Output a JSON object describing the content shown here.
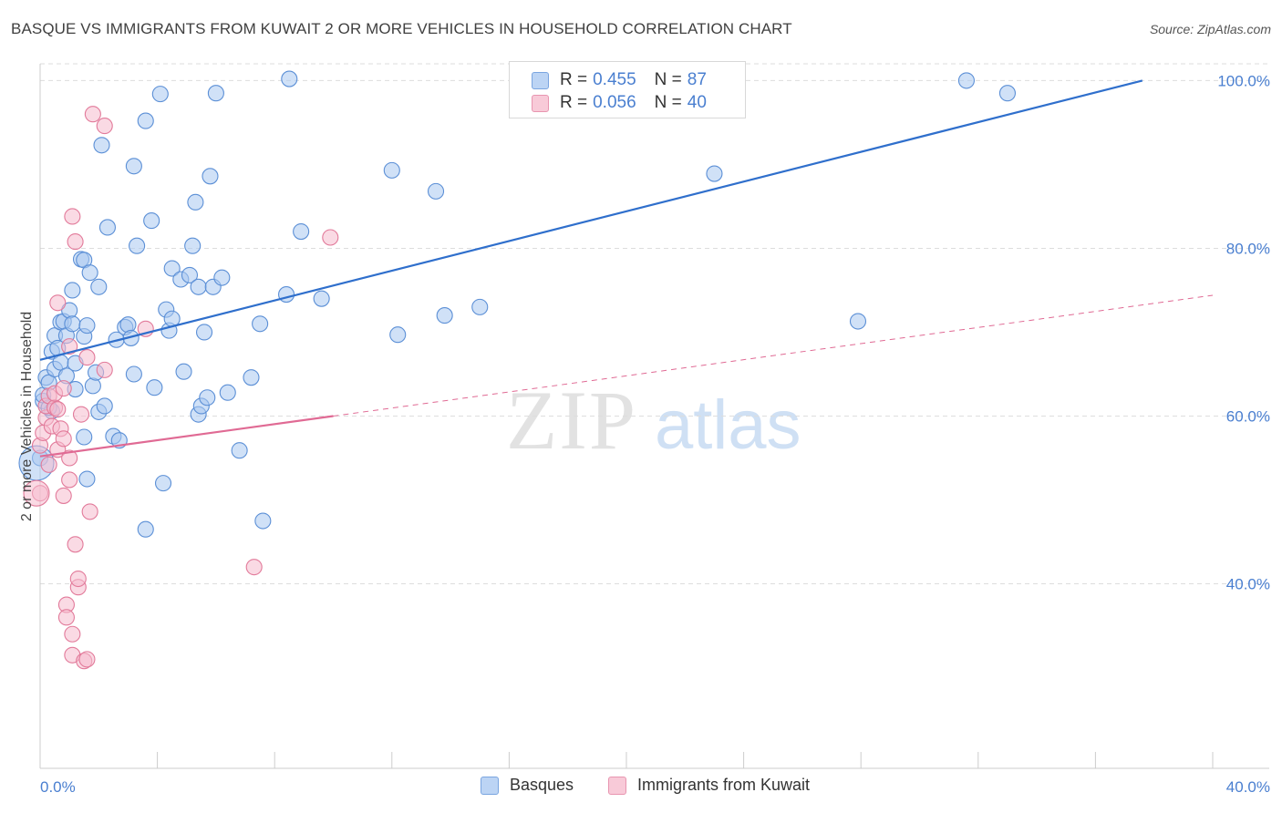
{
  "title": "BASQUE VS IMMIGRANTS FROM KUWAIT 2 OR MORE VEHICLES IN HOUSEHOLD CORRELATION CHART",
  "source": "Source: ZipAtlas.com",
  "watermark": {
    "zip": "ZIP",
    "atlas": "atlas"
  },
  "colors": {
    "blue_fill": "#a9c8f0",
    "blue_stroke": "#5b8fd6",
    "blue_line": "#2f6fcc",
    "pink_fill": "#f6bccd",
    "pink_stroke": "#e27a9a",
    "pink_line": "#e06a94",
    "grid": "#dddddd",
    "tick_text": "#4a7fd0"
  },
  "legend_top": {
    "series1": {
      "r_label": "R =",
      "r_value": "0.455",
      "n_label": "N =",
      "n_value": "87"
    },
    "series2": {
      "r_label": "R =",
      "r_value": "0.056",
      "n_label": "N =",
      "n_value": "40"
    }
  },
  "legend_bottom": {
    "series1": "Basques",
    "series2": "Immigrants from Kuwait"
  },
  "chart_data": {
    "type": "scatter",
    "title": "BASQUE VS IMMIGRANTS FROM KUWAIT 2 OR MORE VEHICLES IN HOUSEHOLD CORRELATION CHART",
    "xlabel": "",
    "ylabel": "2 or more Vehicles in Household",
    "xlim": [
      0,
      40
    ],
    "ylim": [
      18,
      102
    ],
    "x_tick_labels": [
      "0.0%",
      "40.0%"
    ],
    "y_ticks": [
      40,
      60,
      80,
      100
    ],
    "y_tick_labels": [
      "40.0%",
      "60.0%",
      "80.0%",
      "100.0%"
    ],
    "grid": true,
    "legend_placement": "top-center",
    "series": [
      {
        "name": "Basques",
        "r": 0.455,
        "n": 87,
        "trend": {
          "x": [
            0,
            37.6
          ],
          "y": [
            66.7,
            100.0
          ],
          "style": "solid"
        },
        "points": [
          [
            0.1,
            61.8
          ],
          [
            0.1,
            62.5
          ],
          [
            0.2,
            64.6
          ],
          [
            0.3,
            64.0
          ],
          [
            0.4,
            60.6
          ],
          [
            0.4,
            67.7
          ],
          [
            0.5,
            69.6
          ],
          [
            0.5,
            65.6
          ],
          [
            0.6,
            68.1
          ],
          [
            0.7,
            66.4
          ],
          [
            0.7,
            71.2
          ],
          [
            0.8,
            71.3
          ],
          [
            0.9,
            69.6
          ],
          [
            0.9,
            64.8
          ],
          [
            1.0,
            72.6
          ],
          [
            1.1,
            71.0
          ],
          [
            1.1,
            75.0
          ],
          [
            1.2,
            66.3
          ],
          [
            1.2,
            63.2
          ],
          [
            1.4,
            78.7
          ],
          [
            1.5,
            78.6
          ],
          [
            1.5,
            69.5
          ],
          [
            1.6,
            70.8
          ],
          [
            1.7,
            77.1
          ],
          [
            1.8,
            63.6
          ],
          [
            1.9,
            65.2
          ],
          [
            2.0,
            75.4
          ],
          [
            2.0,
            60.5
          ],
          [
            2.1,
            92.3
          ],
          [
            2.2,
            61.2
          ],
          [
            2.3,
            82.5
          ],
          [
            2.5,
            57.6
          ],
          [
            2.6,
            69.1
          ],
          [
            2.7,
            57.1
          ],
          [
            2.9,
            70.6
          ],
          [
            3.0,
            70.9
          ],
          [
            3.1,
            69.3
          ],
          [
            3.2,
            65.0
          ],
          [
            3.2,
            89.8
          ],
          [
            3.3,
            80.3
          ],
          [
            3.6,
            95.2
          ],
          [
            3.8,
            83.3
          ],
          [
            3.9,
            63.4
          ],
          [
            4.1,
            98.4
          ],
          [
            4.3,
            72.7
          ],
          [
            4.4,
            70.2
          ],
          [
            4.5,
            71.6
          ],
          [
            4.5,
            77.6
          ],
          [
            4.8,
            76.3
          ],
          [
            4.9,
            65.3
          ],
          [
            5.1,
            76.8
          ],
          [
            5.2,
            80.3
          ],
          [
            5.3,
            85.5
          ],
          [
            5.4,
            75.4
          ],
          [
            5.4,
            60.2
          ],
          [
            5.5,
            61.2
          ],
          [
            5.6,
            70.0
          ],
          [
            5.7,
            62.2
          ],
          [
            5.8,
            88.6
          ],
          [
            5.9,
            75.4
          ],
          [
            6.0,
            98.5
          ],
          [
            6.2,
            76.5
          ],
          [
            6.4,
            62.8
          ],
          [
            6.8,
            55.9
          ],
          [
            7.2,
            64.6
          ],
          [
            7.5,
            71.0
          ],
          [
            8.4,
            74.5
          ],
          [
            8.5,
            100.2
          ],
          [
            8.9,
            82.0
          ],
          [
            9.6,
            74.0
          ],
          [
            12.0,
            89.3
          ],
          [
            12.2,
            69.7
          ],
          [
            13.5,
            86.8
          ],
          [
            13.8,
            72.0
          ],
          [
            15.0,
            73.0
          ],
          [
            20.8,
            100.3
          ],
          [
            23.0,
            88.9
          ],
          [
            27.9,
            71.3
          ],
          [
            31.6,
            100.0
          ],
          [
            33.0,
            98.5
          ],
          [
            0.0,
            55.0
          ],
          [
            0.3,
            61.0
          ],
          [
            1.5,
            57.5
          ],
          [
            4.2,
            52.0
          ],
          [
            3.6,
            46.5
          ],
          [
            7.6,
            47.5
          ],
          [
            1.6,
            52.5
          ]
        ]
      },
      {
        "name": "Immigrants from Kuwait",
        "r": 0.056,
        "n": 40,
        "trend": {
          "x": [
            0,
            40
          ],
          "y": [
            55.2,
            74.4
          ],
          "solid_until_x": 10.0,
          "style": "solid-then-dashed"
        },
        "points": [
          [
            0.0,
            50.8
          ],
          [
            0.0,
            56.5
          ],
          [
            0.1,
            58.0
          ],
          [
            0.2,
            59.8
          ],
          [
            0.2,
            61.2
          ],
          [
            0.3,
            54.2
          ],
          [
            0.3,
            62.4
          ],
          [
            0.4,
            58.8
          ],
          [
            0.5,
            61.0
          ],
          [
            0.5,
            62.7
          ],
          [
            0.6,
            56.0
          ],
          [
            0.6,
            60.8
          ],
          [
            0.6,
            73.5
          ],
          [
            0.7,
            58.5
          ],
          [
            0.8,
            63.3
          ],
          [
            0.8,
            50.5
          ],
          [
            0.8,
            57.3
          ],
          [
            0.9,
            37.5
          ],
          [
            0.9,
            36.0
          ],
          [
            1.0,
            52.4
          ],
          [
            1.0,
            68.3
          ],
          [
            1.0,
            55.0
          ],
          [
            1.1,
            83.8
          ],
          [
            1.1,
            31.5
          ],
          [
            1.1,
            34.0
          ],
          [
            1.2,
            80.8
          ],
          [
            1.2,
            44.7
          ],
          [
            1.3,
            39.6
          ],
          [
            1.3,
            40.6
          ],
          [
            1.4,
            60.2
          ],
          [
            1.5,
            30.8
          ],
          [
            1.6,
            31.0
          ],
          [
            1.6,
            67.0
          ],
          [
            1.7,
            48.6
          ],
          [
            1.8,
            96.0
          ],
          [
            2.2,
            94.6
          ],
          [
            2.2,
            65.5
          ],
          [
            3.6,
            70.4
          ],
          [
            7.3,
            42.0
          ],
          [
            9.9,
            81.3
          ]
        ]
      }
    ]
  }
}
